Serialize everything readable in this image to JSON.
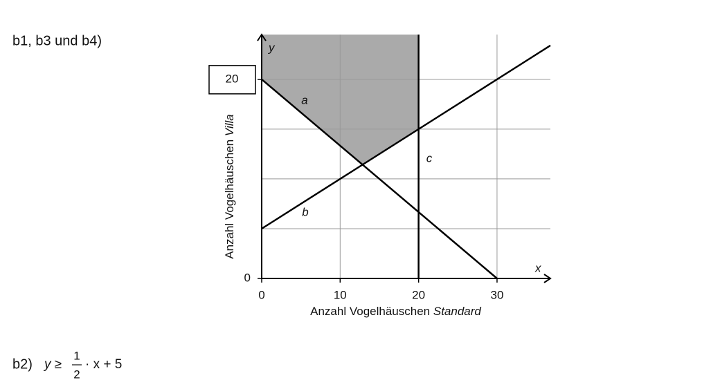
{
  "heading": "b1, b3 und b4)",
  "chart_data": {
    "type": "line",
    "xlabel": {
      "text": "Anzahl Vogelhäuschen",
      "emphasis": "Standard"
    },
    "ylabel": {
      "text": "Anzahl Vogelhäuschen",
      "emphasis": "Villa"
    },
    "x_axis_name": "x",
    "y_axis_name": "y",
    "xlim": [
      0,
      36.8
    ],
    "ylim": [
      0,
      24.5
    ],
    "xticks": [
      0,
      10,
      20,
      30
    ],
    "yticks": [
      0,
      20
    ],
    "xgrid": [
      10,
      20,
      30
    ],
    "ygrid": [
      5,
      10,
      15,
      20
    ],
    "grid": true,
    "boxed_ytick": 20,
    "region_color": "#aaaaaa",
    "series": [
      {
        "name": "a",
        "color": "#000000",
        "x": [
          0,
          30
        ],
        "values": [
          20,
          0
        ]
      },
      {
        "name": "b",
        "color": "#000000",
        "x": [
          0,
          36.8
        ],
        "values": [
          5,
          23.4
        ]
      },
      {
        "name": "c",
        "color": "#000000",
        "x": [
          20,
          20
        ],
        "values": [
          0,
          24.5
        ]
      }
    ]
  },
  "inequality": {
    "label": "b2)",
    "lhs": "y ≥",
    "numerator": "1",
    "denominator": "2",
    "rest": "· x + 5"
  }
}
